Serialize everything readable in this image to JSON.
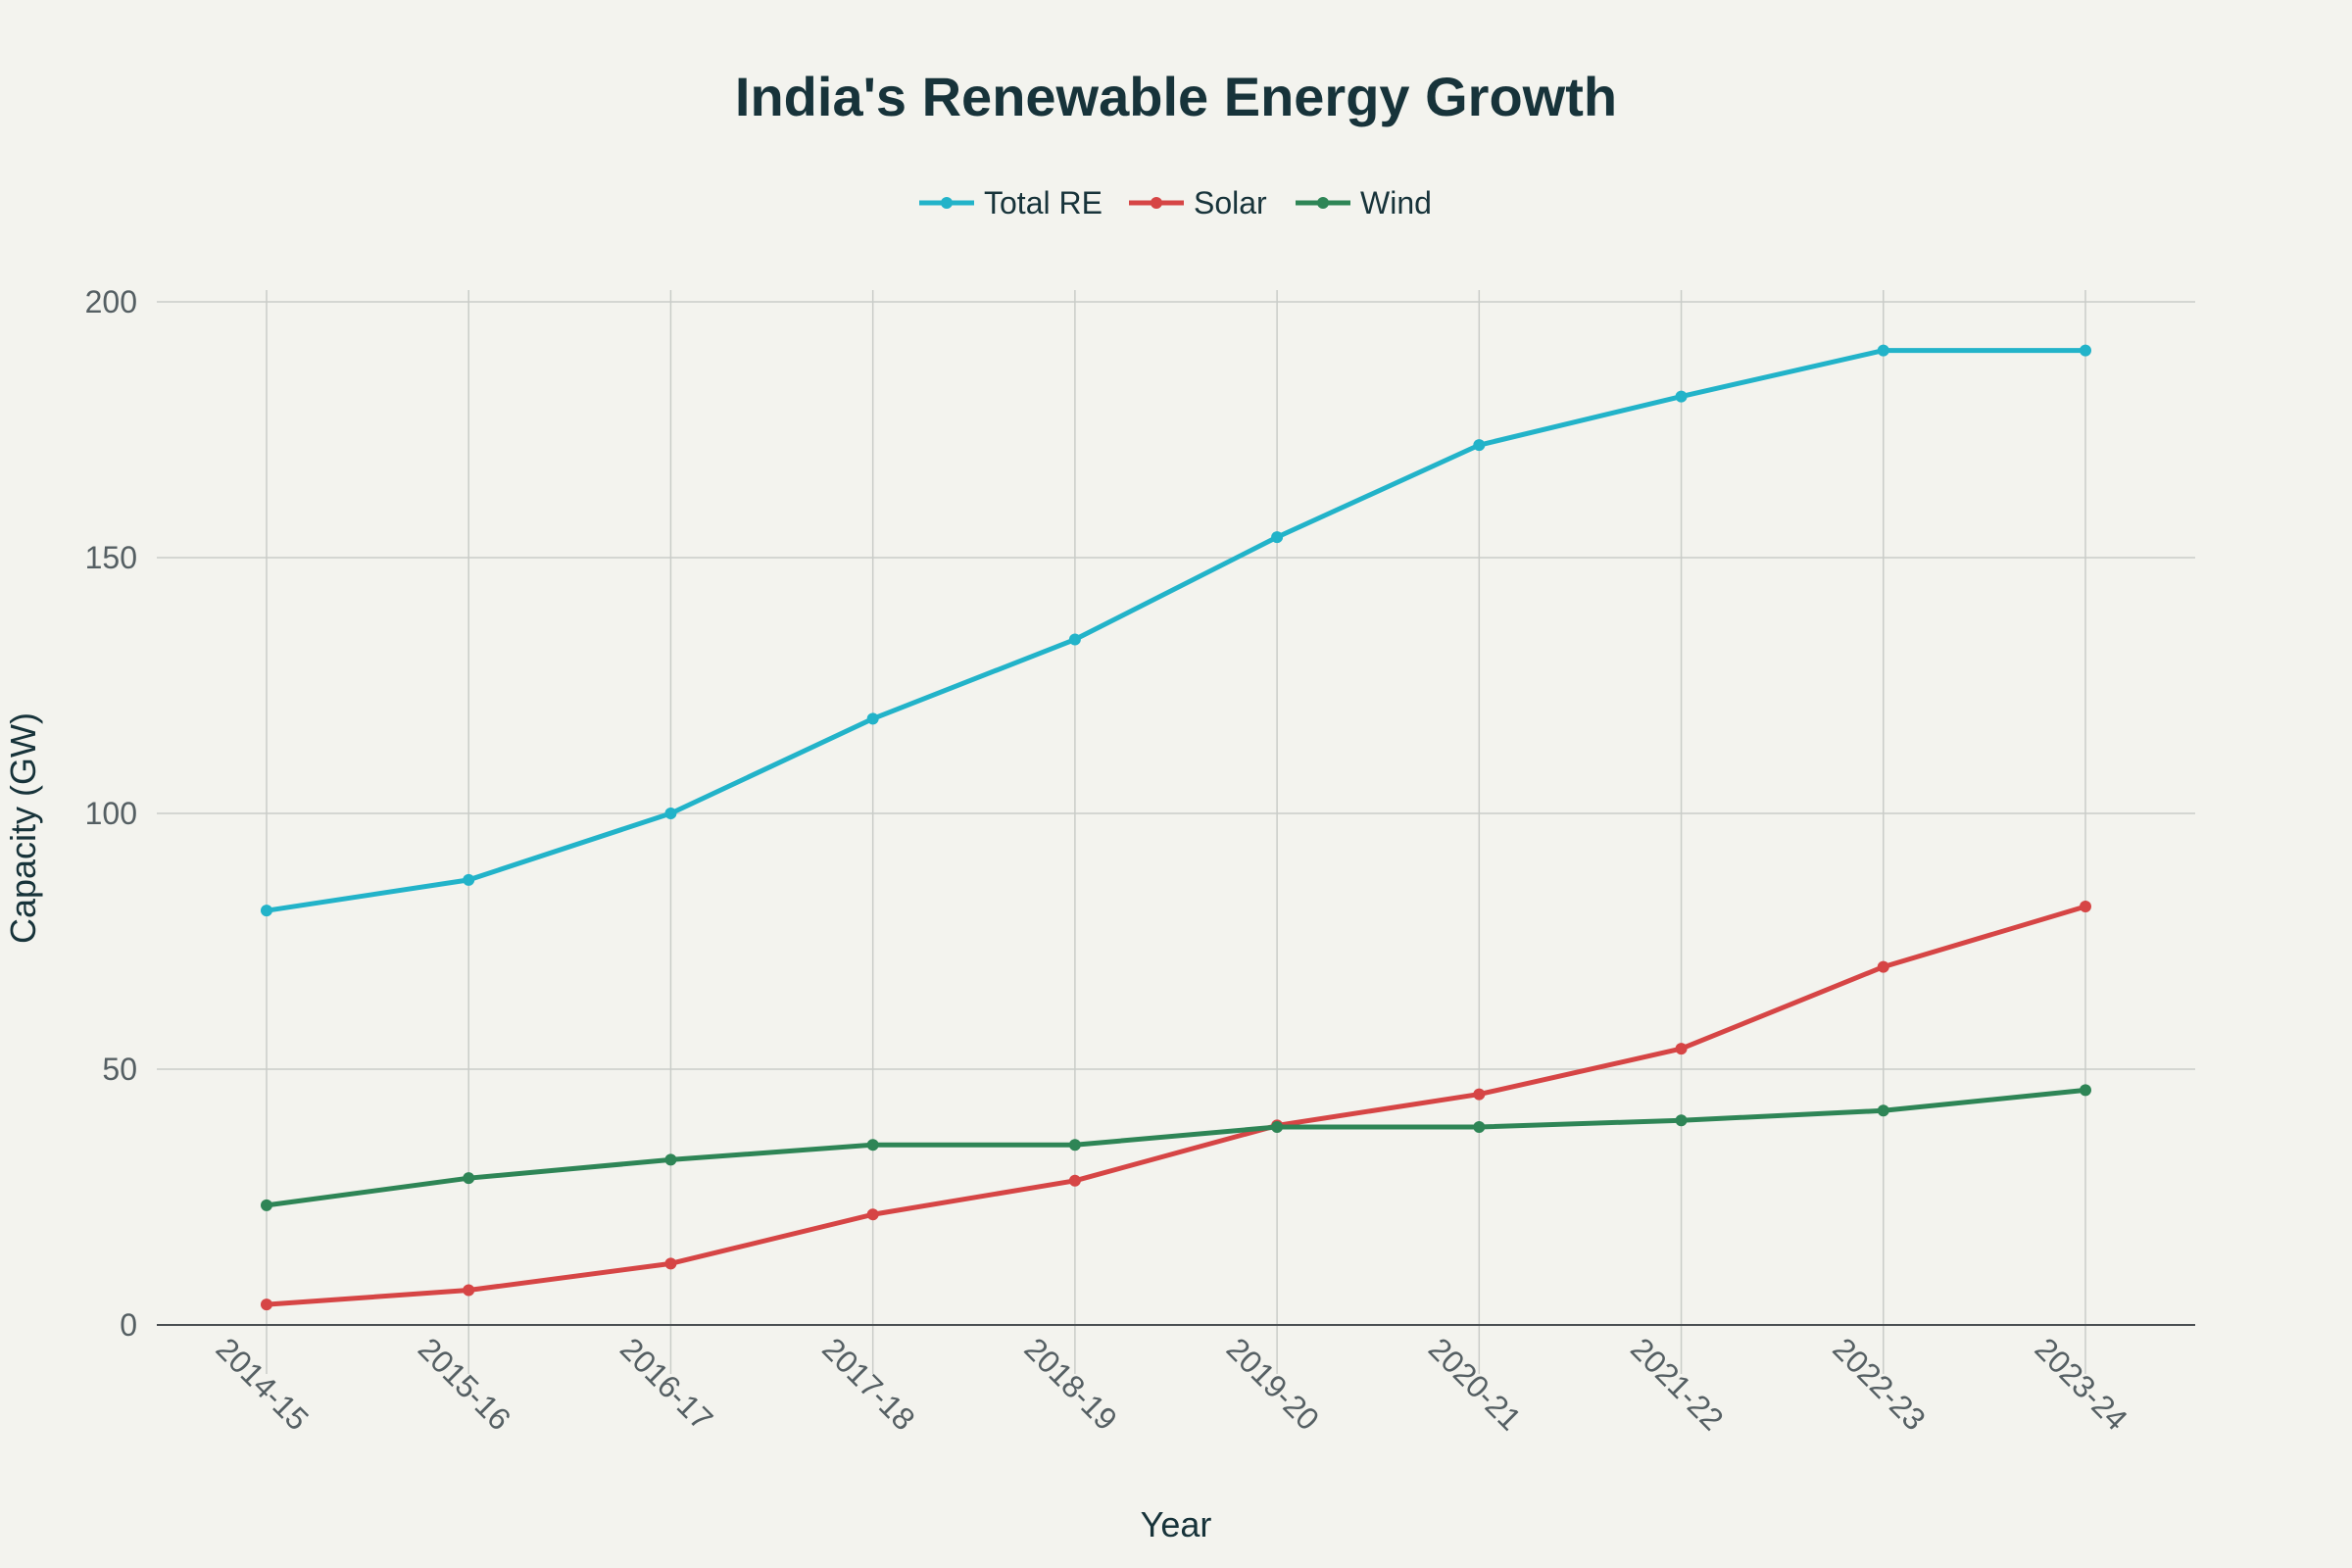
{
  "chart_data": {
    "type": "line",
    "title": "India's Renewable Energy Growth",
    "xlabel": "Year",
    "ylabel": "Capacity (GW)",
    "categories": [
      "2014-15",
      "2015-16",
      "2016-17",
      "2017-18",
      "2018-19",
      "2019-20",
      "2020-21",
      "2021-22",
      "2022-23",
      "2023-24"
    ],
    "ylim": [
      0,
      200
    ],
    "yticks": [
      0,
      50,
      100,
      150,
      200
    ],
    "grid": true,
    "legend_position": "top-center",
    "series": [
      {
        "name": "Total RE",
        "color": "#22b3c9",
        "values": [
          81,
          87,
          100,
          118.5,
          134,
          154,
          172,
          181.5,
          190.5,
          190.5
        ]
      },
      {
        "name": "Solar",
        "color": "#d64545",
        "values": [
          4,
          6.8,
          12,
          21.6,
          28.2,
          39,
          45.1,
          54,
          70,
          81.8
        ]
      },
      {
        "name": "Wind",
        "color": "#2e8556",
        "values": [
          23.4,
          28.7,
          32.3,
          35.2,
          35.2,
          38.7,
          38.7,
          40,
          41.9,
          45.9
        ]
      }
    ]
  }
}
